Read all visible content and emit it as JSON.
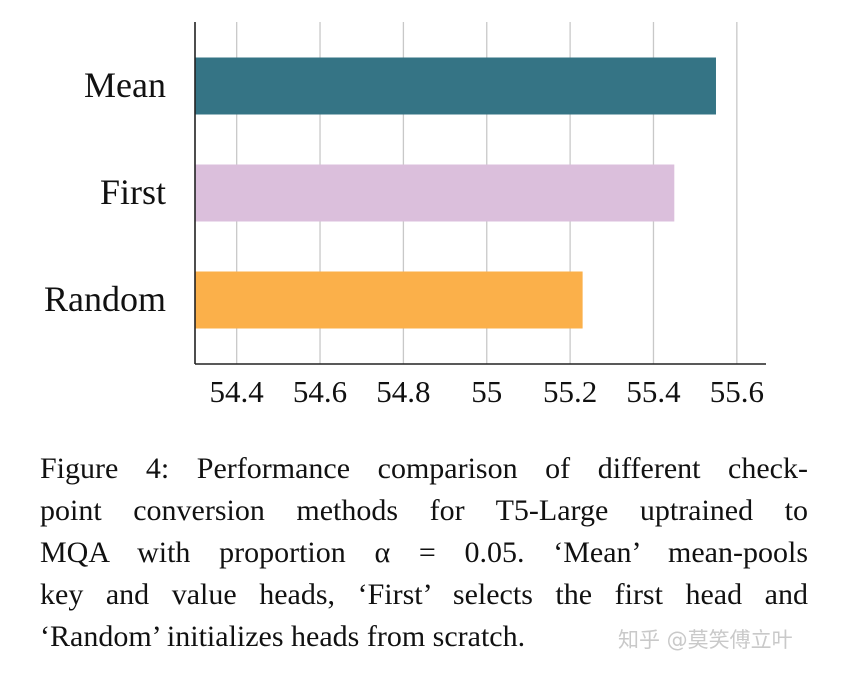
{
  "chart_data": {
    "type": "bar",
    "orientation": "horizontal",
    "categories": [
      "Mean",
      "First",
      "Random"
    ],
    "values": [
      55.55,
      55.45,
      55.23
    ],
    "colors": [
      "#357485",
      "#dbbfdc",
      "#fbb04a"
    ],
    "xlim": [
      54.3,
      55.67
    ],
    "xticks": [
      54.4,
      54.6,
      54.8,
      55,
      55.2,
      55.4,
      55.6
    ],
    "xtick_labels": [
      "54.4",
      "54.6",
      "54.8",
      "55",
      "55.2",
      "55.4",
      "55.6"
    ],
    "grid": "vertical",
    "title": "",
    "xlabel": "",
    "ylabel": ""
  },
  "caption": {
    "lines": [
      "Figure 4: Performance comparison of different check-",
      "point conversion methods for T5-Large uptrained to",
      "MQA with proportion α = 0.05. ‘Mean’ mean-pools",
      "key and value heads, ‘First’ selects the first head and",
      "‘Random’ initializes heads from scratch."
    ]
  },
  "watermark": "知乎 @莫笑傅立叶"
}
